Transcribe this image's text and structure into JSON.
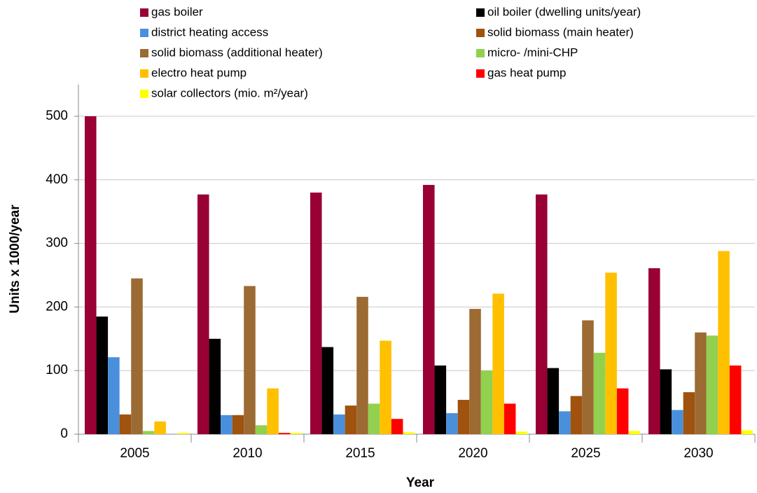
{
  "chart_data": {
    "type": "bar",
    "x_label": "Year",
    "y_label": "Units x 1000/year",
    "categories": [
      "2005",
      "2010",
      "2015",
      "2020",
      "2025",
      "2030"
    ],
    "series": [
      {
        "name": "gas boiler",
        "color": "#990033",
        "values": [
          500,
          377,
          380,
          392,
          377,
          261
        ]
      },
      {
        "name": "oil boiler (dwelling units/year)",
        "color": "#000000",
        "values": [
          185,
          150,
          137,
          108,
          104,
          102
        ]
      },
      {
        "name": "district heating access",
        "color": "#4a8fdc",
        "values": [
          121,
          30,
          31,
          33,
          36,
          38
        ]
      },
      {
        "name": "solid biomass (main heater)",
        "color": "#a0520f",
        "values": [
          31,
          30,
          45,
          54,
          60,
          66
        ]
      },
      {
        "name": "solid biomass (additional heater)",
        "color": "#9c6a33",
        "values": [
          245,
          233,
          216,
          197,
          179,
          160
        ]
      },
      {
        "name": "micro- /mini-CHP",
        "color": "#92d050",
        "values": [
          5,
          14,
          48,
          100,
          128,
          155
        ]
      },
      {
        "name": "electro heat pump",
        "color": "#ffc000",
        "values": [
          20,
          72,
          147,
          221,
          254,
          288
        ]
      },
      {
        "name": "gas heat pump",
        "color": "#ff0000",
        "values": [
          0,
          2,
          24,
          48,
          72,
          108
        ]
      },
      {
        "name": "solar collectors (mio. m²/year)",
        "color": "#ffff00",
        "values": [
          2,
          2,
          3,
          4,
          5,
          6
        ]
      }
    ],
    "ylim": [
      0,
      550
    ],
    "yticks": [
      0,
      100,
      200,
      300,
      400,
      500
    ],
    "grid": true
  }
}
